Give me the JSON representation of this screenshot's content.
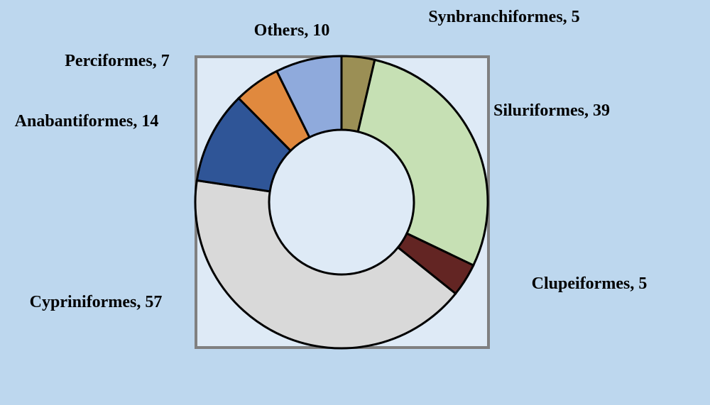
{
  "chart_data": {
    "type": "donut",
    "values": [
      5,
      39,
      5,
      57,
      14,
      7,
      10
    ],
    "value_labels": [
      "Synbranchiformes, 5",
      "Siluriformes, 39",
      "Clupeiformes, 5",
      "Cypriniformes, 57",
      "Anabantiformes, 14",
      "Perciformes, 7",
      "Others, 10"
    ],
    "colors": [
      "#9b8f55",
      "#c6e0b4",
      "#632523",
      "#d9d9d9",
      "#2f5597",
      "#e0893e",
      "#8faadc"
    ]
  }
}
